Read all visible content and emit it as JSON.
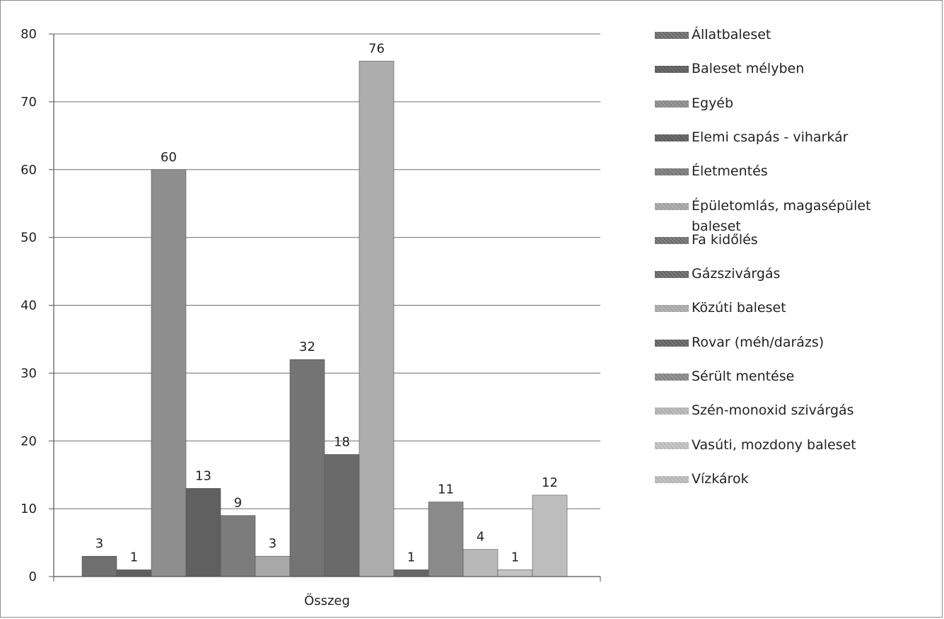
{
  "chart_data": {
    "type": "bar",
    "categories": [
      "Összeg"
    ],
    "ylim": [
      0,
      80
    ],
    "yticks": [
      0,
      10,
      20,
      30,
      40,
      50,
      60,
      70,
      80
    ],
    "grid": true,
    "legend_position": "right",
    "series": [
      {
        "name": "Állatbaleset",
        "value": 3,
        "color": "#6f6f6f"
      },
      {
        "name": "Baleset mélyben",
        "value": 1,
        "color": "#5f5f5f"
      },
      {
        "name": "Egyéb",
        "value": 60,
        "color": "#8e8e8e"
      },
      {
        "name": "Elemi csapás - viharkár",
        "value": 13,
        "color": "#606060"
      },
      {
        "name": "Életmentés",
        "value": 9,
        "color": "#7c7c7c"
      },
      {
        "name": "Épületomlás, magasépület baleset",
        "value": 3,
        "color": "#a8a8a8"
      },
      {
        "name": "Fa kidőlés",
        "value": 32,
        "color": "#747474"
      },
      {
        "name": "Gázszivárgás",
        "value": 18,
        "color": "#6a6a6a"
      },
      {
        "name": "Közúti baleset",
        "value": 76,
        "color": "#adadad"
      },
      {
        "name": "Rovar (méh/darázs)",
        "value": 1,
        "color": "#666666"
      },
      {
        "name": "Sérült mentése",
        "value": 11,
        "color": "#8a8a8a"
      },
      {
        "name": "Szén-monoxid szivárgás",
        "value": 4,
        "color": "#b8b8b8"
      },
      {
        "name": "Vasúti, mozdony baleset",
        "value": 1,
        "color": "#c2c2c2"
      },
      {
        "name": "Vízkárok",
        "value": 12,
        "color": "#bdbdbd"
      }
    ]
  }
}
